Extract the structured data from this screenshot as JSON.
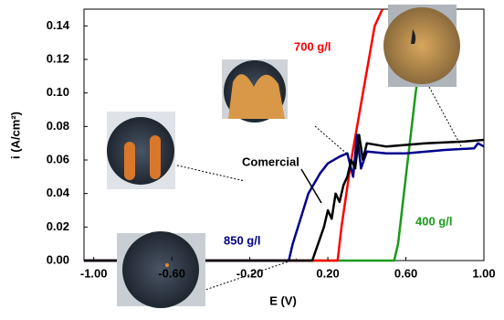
{
  "chart_data": {
    "type": "line",
    "x_label": "E (V)",
    "y_label": "i (A/cm²)",
    "xlim": [
      -1.05,
      1.0
    ],
    "ylim": [
      0,
      0.15
    ],
    "xticks": [
      {
        "value": -1.0,
        "label": "-1.00"
      },
      {
        "value": -0.6,
        "label": "-0.60"
      },
      {
        "value": -0.2,
        "label": "-0.20"
      },
      {
        "value": 0.2,
        "label": "0.20"
      },
      {
        "value": 0.6,
        "label": "0.60"
      },
      {
        "value": 1.0,
        "label": "1.00"
      }
    ],
    "yticks": [
      {
        "value": 0,
        "label": "0.00"
      },
      {
        "value": 0.02,
        "label": "0.02"
      },
      {
        "value": 0.04,
        "label": "0.04"
      },
      {
        "value": 0.06,
        "label": "0.06"
      },
      {
        "value": 0.08,
        "label": "0.08"
      },
      {
        "value": 0.1,
        "label": "0.10"
      },
      {
        "value": 0.12,
        "label": "0.12"
      },
      {
        "value": 0.14,
        "label": "0.14"
      }
    ],
    "series": [
      {
        "name": "400 g/l",
        "color": "#1a9a1a",
        "x": [
          -1.05,
          0.54,
          0.56,
          0.6,
          0.65,
          0.7,
          0.73
        ],
        "values": [
          0,
          0,
          0.01,
          0.05,
          0.1,
          0.14,
          0.15
        ]
      },
      {
        "name": "700 g/l",
        "color": "#ff0000",
        "x": [
          -1.05,
          0.25,
          0.27,
          0.32,
          0.38,
          0.44,
          0.48
        ],
        "values": [
          0,
          0,
          0.02,
          0.06,
          0.1,
          0.14,
          0.15
        ]
      },
      {
        "name": "850 g/l",
        "color": "#00008b",
        "x": [
          -1.05,
          0.0,
          0.02,
          0.06,
          0.1,
          0.16,
          0.2,
          0.26,
          0.3,
          0.33,
          0.35,
          0.37,
          0.4,
          0.5,
          0.6,
          0.8,
          0.95,
          0.97,
          1.0
        ],
        "values": [
          0,
          0,
          0.01,
          0.025,
          0.04,
          0.052,
          0.058,
          0.062,
          0.064,
          0.05,
          0.075,
          0.055,
          0.065,
          0.064,
          0.064,
          0.066,
          0.067,
          0.07,
          0.068
        ]
      },
      {
        "name": "Comercial",
        "color": "#000000",
        "x": [
          -1.05,
          0.12,
          0.15,
          0.18,
          0.2,
          0.22,
          0.24,
          0.26,
          0.28,
          0.3,
          0.32,
          0.34,
          0.36,
          0.38,
          0.4,
          0.5,
          0.7,
          0.9,
          1.0
        ],
        "values": [
          0,
          0,
          0.01,
          0.02,
          0.03,
          0.025,
          0.04,
          0.035,
          0.045,
          0.05,
          0.06,
          0.055,
          0.075,
          0.06,
          0.07,
          0.068,
          0.07,
          0.071,
          0.072
        ]
      }
    ]
  }
}
